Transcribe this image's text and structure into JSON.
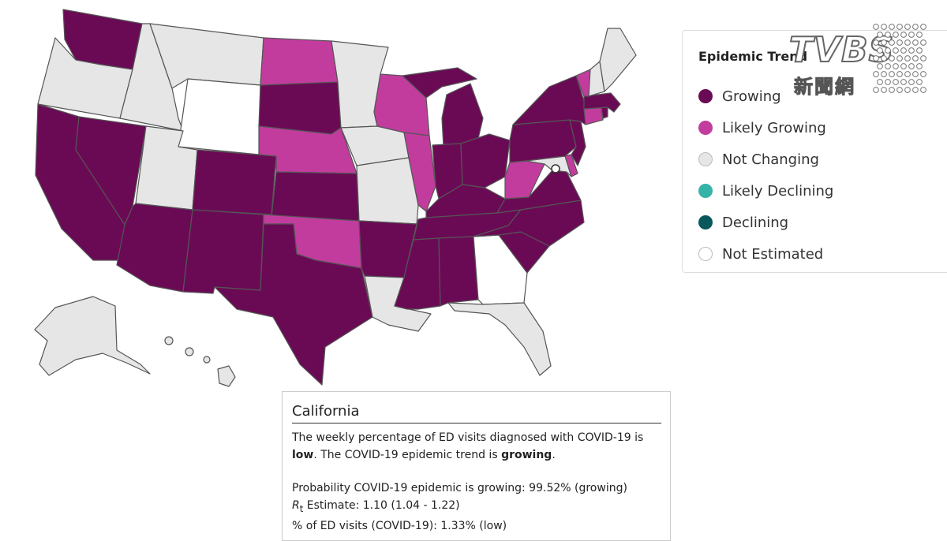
{
  "legend": {
    "title": "Epidemic Trend",
    "items": [
      {
        "label": "Growing",
        "color": "#6a0a55"
      },
      {
        "label": "Likely Growing",
        "color": "#c23c9e"
      },
      {
        "label": "Not Changing",
        "color": "#e6e6e6"
      },
      {
        "label": "Likely Declining",
        "color": "#36b3a8"
      },
      {
        "label": "Declining",
        "color": "#07575b"
      },
      {
        "label": "Not Estimated",
        "color": "#ffffff"
      }
    ]
  },
  "colors": {
    "growing": "#6a0a55",
    "likely_growing": "#c23c9e",
    "not_changing": "#e6e6e6",
    "not_estimated": "#ffffff"
  },
  "logo": {
    "word": "TVBS",
    "chinese": "新聞網"
  },
  "tooltip": {
    "state": "California",
    "line1_prefix": "The weekly percentage of ED visits diagnosed with COVID-19 is",
    "level": "low",
    "line1_mid": ". The COVID-19 epidemic trend is",
    "trend": "growing",
    "line1_end": ".",
    "probability": "Probability COVID-19 epidemic is growing: 99.52% (growing)",
    "rt_symbol": "R",
    "rt_sub": "t",
    "rt_text": " Estimate: 1.10 (1.04 - 1.22)",
    "ed_visits": "% of ED visits (COVID-19): 1.33% (low)"
  },
  "states": {
    "WA": "growing",
    "OR": "not_changing",
    "CA": "growing",
    "NV": "growing",
    "ID": "not_changing",
    "MT": "not_changing",
    "WY": "not_estimated",
    "UT": "not_changing",
    "AZ": "growing",
    "CO": "growing",
    "NM": "growing",
    "ND": "likely_growing",
    "SD": "growing",
    "NE": "likely_growing",
    "KS": "growing",
    "OK": "likely_growing",
    "TX": "growing",
    "MN": "not_changing",
    "IA": "not_changing",
    "MO": "not_changing",
    "AR": "growing",
    "LA": "not_changing",
    "WI": "likely_growing",
    "IL": "likely_growing",
    "MI": "growing",
    "IN": "growing",
    "OH": "growing",
    "KY": "growing",
    "TN": "growing",
    "MS": "growing",
    "AL": "growing",
    "GA": "not_estimated",
    "FL": "not_changing",
    "SC": "growing",
    "NC": "growing",
    "VA": "growing",
    "WV": "likely_growing",
    "MD": "not_changing",
    "DE": "likely_growing",
    "PA": "growing",
    "NJ": "growing",
    "NY": "growing",
    "CT": "likely_growing",
    "RI": "growing",
    "MA": "growing",
    "VT": "likely_growing",
    "NH": "not_changing",
    "ME": "not_changing",
    "AK": "not_changing",
    "HI": "not_changing"
  }
}
